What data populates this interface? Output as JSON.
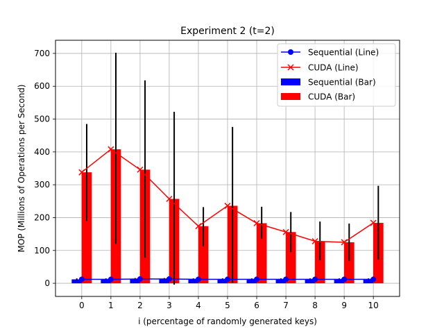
{
  "chart_data": {
    "type": "bar",
    "title": "Experiment 2 (t=2)",
    "xlabel": "i (percentage of randomly generated keys)",
    "ylabel": "MOP (Millions of Operations per Second)",
    "categories": [
      "0",
      "1",
      "2",
      "3",
      "4",
      "5",
      "6",
      "7",
      "8",
      "9",
      "10"
    ],
    "x": [
      0,
      1,
      2,
      3,
      4,
      5,
      6,
      7,
      8,
      9,
      10
    ],
    "xlim": [
      -0.9,
      10.9
    ],
    "ylim": [
      -40,
      740
    ],
    "yticks": [
      0,
      100,
      200,
      300,
      400,
      500,
      600,
      700
    ],
    "grid": true,
    "legend_position": "top-right",
    "series": [
      {
        "name": "Sequential (Line)",
        "kind": "line",
        "marker": "circle",
        "color": "#0000ff",
        "values": [
          12,
          12,
          13,
          13,
          12,
          12,
          12,
          12,
          12,
          12,
          12
        ]
      },
      {
        "name": "CUDA (Line)",
        "kind": "line",
        "marker": "x",
        "color": "#ff0000",
        "values": [
          338,
          408,
          346,
          257,
          174,
          236,
          183,
          156,
          128,
          125,
          184
        ]
      },
      {
        "name": "Sequential (Bar)",
        "kind": "bar",
        "color": "#0000ff",
        "values": [
          12,
          12,
          13,
          13,
          12,
          12,
          12,
          12,
          12,
          12,
          12
        ],
        "err_low": [
          9,
          9,
          10,
          10,
          9,
          9,
          9,
          9,
          9,
          9,
          9
        ],
        "err_high": [
          15,
          15,
          16,
          16,
          15,
          15,
          15,
          15,
          15,
          15,
          15
        ]
      },
      {
        "name": "CUDA (Bar)",
        "kind": "bar",
        "color": "#ff0000",
        "values": [
          338,
          408,
          346,
          257,
          174,
          236,
          183,
          156,
          128,
          125,
          184
        ],
        "err_low": [
          190,
          120,
          78,
          -4,
          113,
          2,
          135,
          95,
          70,
          68,
          72
        ],
        "err_high": [
          485,
          702,
          618,
          522,
          232,
          476,
          233,
          217,
          188,
          182,
          297
        ]
      }
    ]
  }
}
